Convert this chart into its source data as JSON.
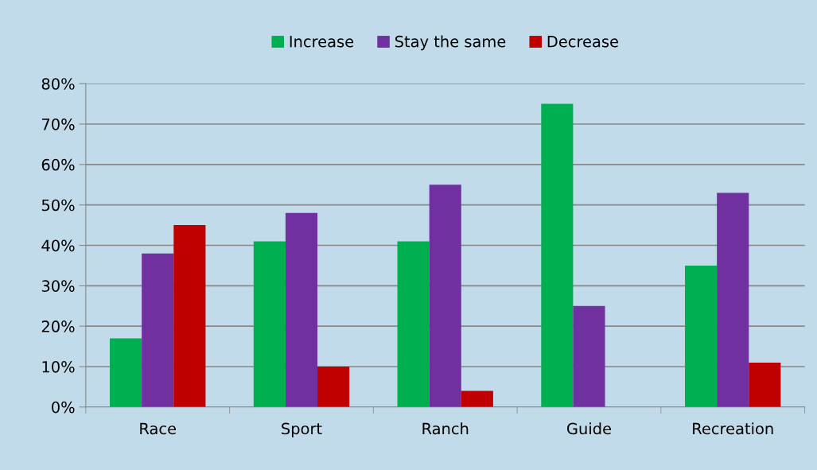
{
  "chart_data": {
    "type": "bar",
    "categories": [
      "Race",
      "Sport",
      "Ranch",
      "Guide",
      "Recreation"
    ],
    "series": [
      {
        "name": "Increase",
        "color": "#00b050",
        "values": [
          17,
          41,
          41,
          75,
          35
        ]
      },
      {
        "name": "Stay the same",
        "color": "#7030a0",
        "values": [
          38,
          48,
          55,
          25,
          53
        ]
      },
      {
        "name": "Decrease",
        "color": "#c00000",
        "values": [
          45,
          10,
          4,
          0,
          11
        ]
      }
    ],
    "ylim": [
      0,
      80
    ],
    "yticks": [
      {
        "value": 0,
        "label": "0%"
      },
      {
        "value": 10,
        "label": "10%"
      },
      {
        "value": 20,
        "label": "20%"
      },
      {
        "value": 30,
        "label": "30%"
      },
      {
        "value": 40,
        "label": "40%"
      },
      {
        "value": 50,
        "label": "50%"
      },
      {
        "value": 60,
        "label": "60%"
      },
      {
        "value": 70,
        "label": "70%"
      },
      {
        "value": 80,
        "label": "80%"
      }
    ],
    "grid": "y",
    "legend": "top"
  }
}
